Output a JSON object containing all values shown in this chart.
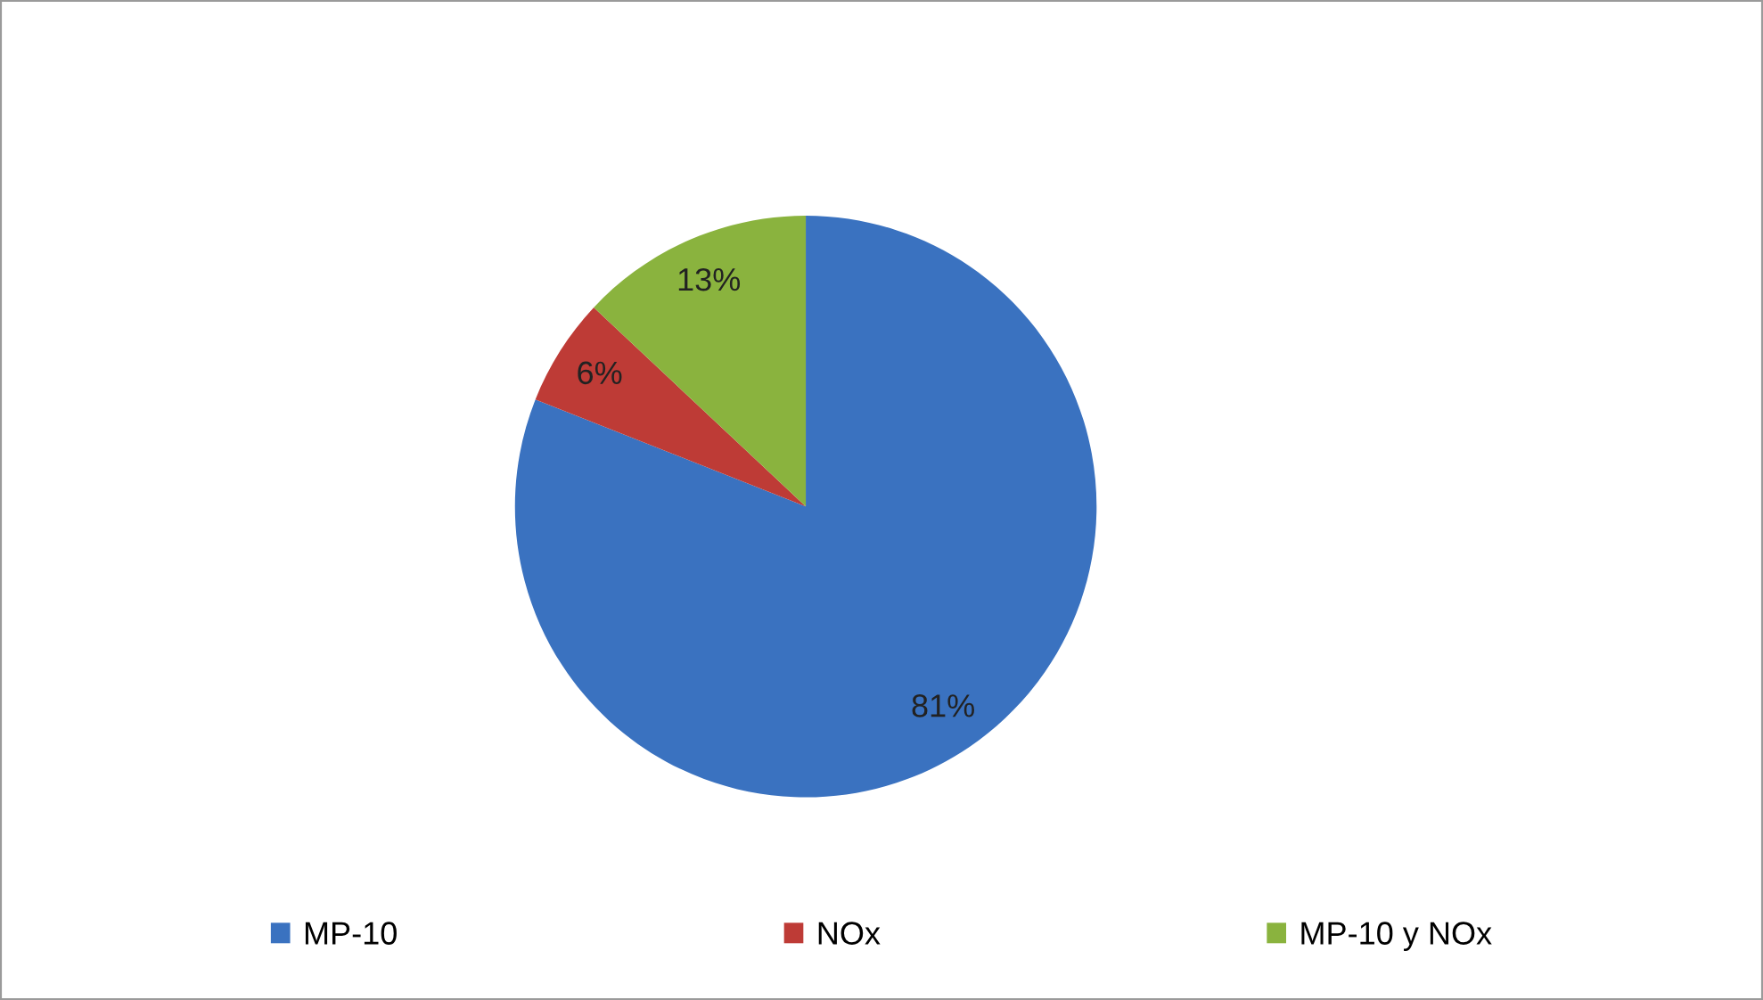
{
  "chart_data": {
    "type": "pie",
    "categories": [
      "MP-10",
      "NOx",
      "MP-10 y NOx"
    ],
    "values": [
      81,
      6,
      13
    ],
    "colors": [
      "#3a72c0",
      "#be3b36",
      "#8ab33e"
    ],
    "value_labels": [
      "81%",
      "6%",
      "13%"
    ],
    "legend": "bottom"
  }
}
